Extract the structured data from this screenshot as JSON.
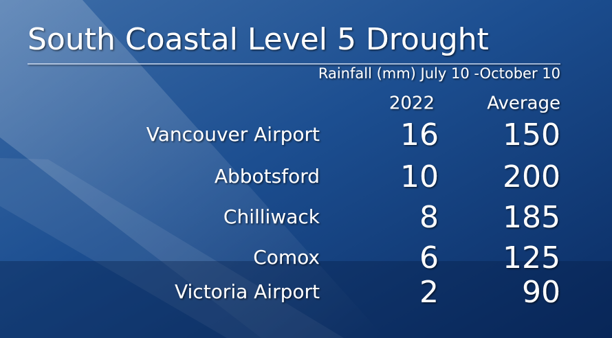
{
  "header": {
    "title": "South Coastal Level 5 Drought",
    "subtitle": "Rainfall (mm) July 10 -October 10"
  },
  "table": {
    "columns": [
      "2022",
      "Average"
    ],
    "rows": [
      [
        "Vancouver Airport",
        16,
        150
      ],
      [
        "Abbotsford",
        10,
        200
      ],
      [
        "Chilliwack",
        8,
        185
      ],
      [
        "Comox",
        6,
        125
      ],
      [
        "Victoria Airport",
        2,
        90
      ]
    ]
  }
}
